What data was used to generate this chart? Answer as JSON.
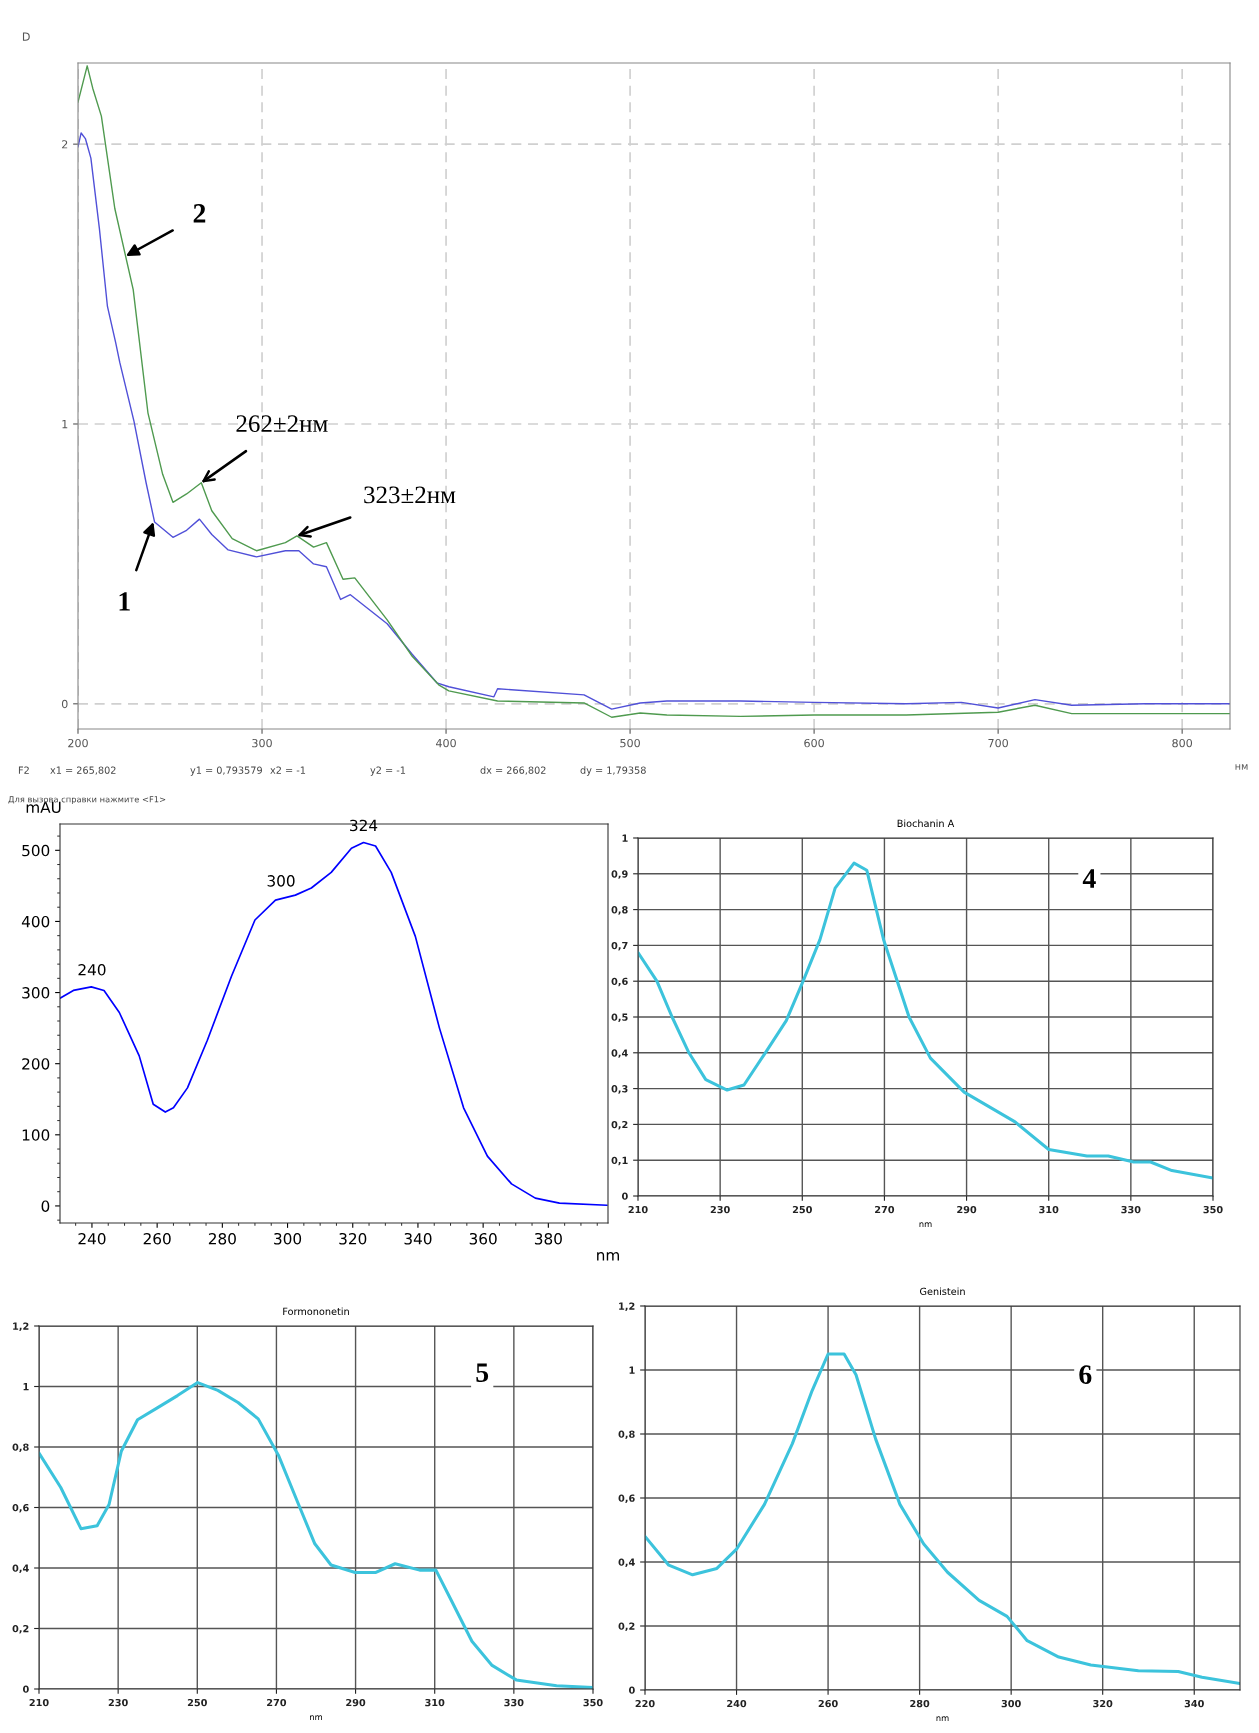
{
  "chart_data": [
    {
      "type": "line",
      "ylabel": "D",
      "xlabel": "нм",
      "xlim": [
        200,
        826
      ],
      "ylim": [
        -0.09,
        2.29
      ],
      "xticks": [
        200,
        300,
        400,
        500,
        600,
        700,
        800
      ],
      "yticks": [
        0,
        1,
        2
      ],
      "grid": true,
      "series": [
        {
          "color": "#5050d8",
          "x": [
            200,
            201.7,
            204,
            207,
            211.6,
            216,
            220.5,
            222.7,
            230.4,
            237,
            241.6,
            251.6,
            259,
            266,
            272.7,
            281.6,
            297,
            312.7,
            320,
            328,
            335,
            342.7,
            348,
            368,
            381.6,
            395,
            401.5,
            426,
            428,
            475,
            490,
            505.5,
            520,
            560,
            600,
            650,
            680,
            700,
            720,
            740,
            780,
            826
          ],
          "values": [
            1.99,
            2.04,
            2.02,
            1.95,
            1.7,
            1.42,
            1.29,
            1.22,
            1.01,
            0.79,
            0.65,
            0.595,
            0.62,
            0.66,
            0.605,
            0.55,
            0.525,
            0.547,
            0.547,
            0.5,
            0.49,
            0.373,
            0.39,
            0.286,
            0.177,
            0.075,
            0.061,
            0.025,
            0.054,
            0.032,
            -0.019,
            0.003,
            0.01,
            0.01,
            0.005,
            0.0,
            0.005,
            -0.015,
            0.015,
            -0.005,
            0.0,
            0.0
          ]
        },
        {
          "color": "#4f9a4f",
          "x": [
            200,
            205,
            208,
            212.7,
            220,
            230,
            238,
            246,
            251.6,
            259,
            267,
            272.7,
            283.8,
            297,
            312.7,
            319,
            328,
            335,
            344,
            350.4,
            368,
            381.6,
            396,
            401.5,
            428,
            475,
            490,
            505.5,
            520,
            560,
            600,
            650,
            700,
            720,
            740,
            800,
            826
          ],
          "values": [
            2.15,
            2.28,
            2.2,
            2.1,
            1.77,
            1.48,
            1.04,
            0.82,
            0.72,
            0.75,
            0.79,
            0.69,
            0.59,
            0.547,
            0.576,
            0.6,
            0.56,
            0.576,
            0.445,
            0.45,
            0.3,
            0.17,
            0.068,
            0.046,
            0.01,
            0.003,
            -0.048,
            -0.033,
            -0.04,
            -0.045,
            -0.04,
            -0.04,
            -0.03,
            -0.005,
            -0.035,
            -0.035,
            -0.035
          ]
        }
      ],
      "annotations": [
        {
          "text": "262±2нм",
          "x": 267,
          "y": 0.79
        },
        {
          "text": "323±2нм",
          "x": 319,
          "y": 0.6
        },
        {
          "text": "1",
          "x": 241,
          "y": 0.65
        },
        {
          "text": "2",
          "x": 226,
          "y": 1.6
        },
        "F2",
        "x1 = 265,802",
        "y1 = 0,793579",
        "x2 = -1",
        "y2 = -1",
        "dx = 266,802",
        "dy = 1,79358",
        "Для вызова справки нажмите <F1>"
      ]
    },
    {
      "type": "line",
      "ylabel": "mAU",
      "xlabel": "nm",
      "xlim": [
        230.2,
        398.3
      ],
      "ylim": [
        -24,
        537
      ],
      "xticks": [
        240,
        260,
        280,
        300,
        320,
        340,
        360,
        380
      ],
      "yticks": [
        0,
        100,
        200,
        300,
        400,
        500
      ],
      "series": [
        {
          "color": "#0000ff",
          "x": [
            230.2,
            234.3,
            239.8,
            243.7,
            248.4,
            254.5,
            258.8,
            262.5,
            265,
            269.3,
            275.4,
            282.8,
            290,
            296.3,
            302.4,
            307.3,
            313.4,
            319.6,
            323.3,
            327,
            331.8,
            339.2,
            346.6,
            354,
            361.3,
            368.7,
            376,
            383.4,
            398
          ],
          "values": [
            292,
            303,
            308,
            303,
            272,
            211,
            143,
            132,
            138,
            166,
            233,
            323,
            402,
            430,
            437,
            447,
            469,
            503,
            511,
            506,
            469,
            379,
            250,
            138,
            70,
            31,
            11,
            4,
            1
          ]
        }
      ],
      "annotations": [
        {
          "text": "240",
          "x": 240,
          "y": 308
        },
        {
          "text": "300",
          "x": 298,
          "y": 433
        },
        {
          "text": "324",
          "x": 323.3,
          "y": 511
        }
      ]
    },
    {
      "type": "line",
      "title": "Biochanin A",
      "xlabel": "nm",
      "xlim": [
        210,
        350
      ],
      "ylim": [
        0,
        1
      ],
      "grid": true,
      "xticks": [
        210,
        230,
        250,
        270,
        290,
        310,
        330,
        350
      ],
      "yticks": [
        0,
        {
          "value": 0.1,
          "label": "0,1"
        },
        {
          "value": 0.2,
          "label": "0,2"
        },
        {
          "value": 0.3,
          "label": "0,3"
        },
        {
          "value": 0.4,
          "label": "0,4"
        },
        {
          "value": 0.5,
          "label": "0,5"
        },
        {
          "value": 0.6,
          "label": "0,6"
        },
        {
          "value": 0.7,
          "label": "0,7"
        },
        {
          "value": 0.8,
          "label": "0,8"
        },
        {
          "value": 0.9,
          "label": "0,9"
        },
        1
      ],
      "series": [
        {
          "color": "#3cc3dc",
          "x": [
            210,
            214.6,
            218.3,
            222.4,
            226.5,
            231.7,
            235.8,
            241,
            246.1,
            250.2,
            254.3,
            258,
            262.6,
            265.7,
            269.8,
            276,
            281.2,
            289.4,
            301.8,
            310,
            319.3,
            324.5,
            330.7,
            334.8,
            340,
            350
          ],
          "values": [
            0.68,
            0.6,
            0.5,
            0.4,
            0.325,
            0.296,
            0.31,
            0.4,
            0.49,
            0.6,
            0.716,
            0.86,
            0.93,
            0.91,
            0.716,
            0.5,
            0.385,
            0.29,
            0.207,
            0.13,
            0.112,
            0.112,
            0.095,
            0.095,
            0.071,
            0.05
          ]
        }
      ],
      "annotations": [
        "4"
      ]
    },
    {
      "type": "line",
      "title": "Formononetin",
      "xlabel": "nm",
      "xlim": [
        210,
        350
      ],
      "ylim": [
        0,
        1.2
      ],
      "grid": true,
      "xticks": [
        210,
        230,
        250,
        270,
        290,
        310,
        330,
        350
      ],
      "yticks": [
        0,
        {
          "value": 0.2,
          "label": "0,2"
        },
        {
          "value": 0.4,
          "label": "0,4"
        },
        {
          "value": 0.6,
          "label": "0,6"
        },
        {
          "value": 0.8,
          "label": "0,8"
        },
        1,
        {
          "value": 1.2,
          "label": "1,2"
        }
      ],
      "series": [
        {
          "color": "#3cc3dc",
          "x": [
            210,
            215.5,
            220.6,
            224.7,
            227.7,
            230.8,
            234.9,
            240,
            245,
            250.1,
            255.2,
            260.3,
            265.4,
            270.5,
            275.6,
            279.7,
            283.8,
            289.9,
            295,
            300,
            306.2,
            310.3,
            314.3,
            319.4,
            324.5,
            330.6,
            340.8,
            350
          ],
          "values": [
            0.78,
            0.666,
            0.53,
            0.54,
            0.61,
            0.786,
            0.89,
            0.93,
            0.97,
            1.013,
            0.987,
            0.947,
            0.893,
            0.773,
            0.61,
            0.48,
            0.41,
            0.385,
            0.385,
            0.414,
            0.393,
            0.393,
            0.29,
            0.158,
            0.078,
            0.03,
            0.011,
            0.005
          ]
        }
      ],
      "annotations": [
        "5"
      ]
    },
    {
      "type": "line",
      "title": "Genistein",
      "xlabel": "nm",
      "xlim": [
        220,
        350
      ],
      "ylim": [
        0,
        1.2
      ],
      "grid": true,
      "xticks": [
        220,
        240,
        260,
        280,
        300,
        320,
        340
      ],
      "yticks": [
        0,
        {
          "value": 0.2,
          "label": "0,2"
        },
        {
          "value": 0.4,
          "label": "0,4"
        },
        {
          "value": 0.6,
          "label": "0,6"
        },
        {
          "value": 0.8,
          "label": "0,8"
        },
        1,
        {
          "value": 1.2,
          "label": "1,2"
        }
      ],
      "series": [
        {
          "color": "#3cc3dc",
          "x": [
            220,
            225.2,
            230.4,
            235.7,
            240,
            246.1,
            252.2,
            256.5,
            260,
            263.5,
            266.1,
            270.4,
            275.7,
            280.9,
            286.1,
            293,
            299.1,
            303.5,
            310.4,
            317.4,
            327.8,
            336.5,
            341.7,
            350
          ],
          "values": [
            0.48,
            0.39,
            0.36,
            0.38,
            0.44,
            0.58,
            0.77,
            0.935,
            1.05,
            1.05,
            0.985,
            0.784,
            0.58,
            0.456,
            0.368,
            0.28,
            0.23,
            0.154,
            0.103,
            0.078,
            0.06,
            0.058,
            0.04,
            0.02
          ]
        }
      ],
      "annotations": [
        "6"
      ]
    }
  ]
}
